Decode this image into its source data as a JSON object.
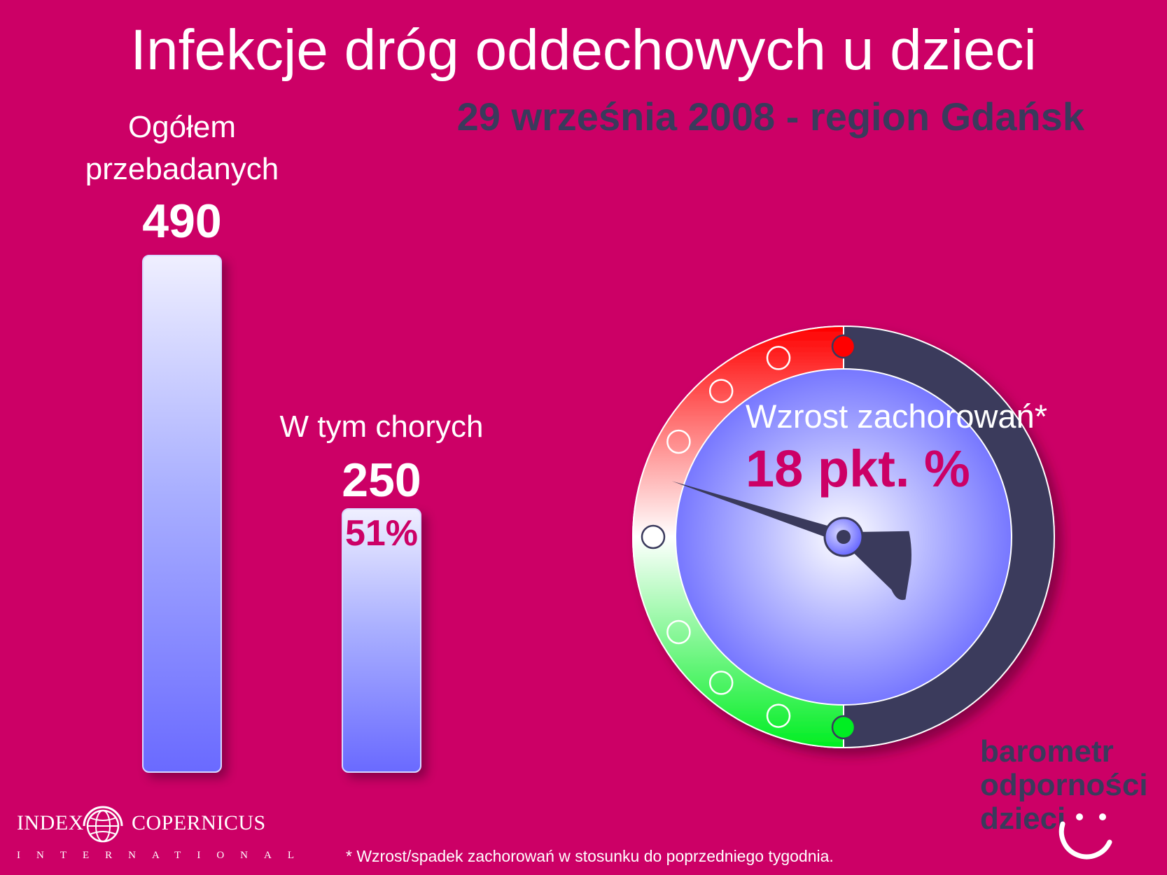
{
  "title": "Infekcje dróg oddechowych u dzieci",
  "subtitle": "29 września 2008 - region Gdańsk",
  "chart_data": [
    {
      "type": "bar",
      "categories": [
        "Ogółem przebadanych",
        "W tym chorych"
      ],
      "label_lines": [
        [
          "Ogółem",
          "przebadanych"
        ],
        [
          "W tym chorych"
        ]
      ],
      "values": [
        490,
        250
      ],
      "value_labels": [
        "490",
        "250"
      ],
      "annotations": [
        "51%"
      ],
      "bar_color_top": "#efefff",
      "bar_color_bottom": "#6a6aff",
      "ylim": [
        0,
        490
      ]
    },
    {
      "type": "gauge",
      "label": "Wzrost zachorowań*",
      "value_label": "18 pkt. %",
      "value": 18,
      "scale_colors": [
        "#00ee22",
        "#ffffff",
        "#ff0000"
      ],
      "inactive_color": "#3a3a5c",
      "dial_color": "#6a6aff"
    }
  ],
  "footnote": "* Wzrost/spadek zachorowań w stosunku do poprzedniego tygodnia.",
  "logo": {
    "left": "INDEX",
    "right": "COPERNICUS",
    "sub": "INTERNATIONAL"
  },
  "brand": {
    "line1": "barometr",
    "line2": "odporności",
    "line3": "dzieci",
    "color": "#3a3a5c"
  },
  "colors": {
    "background": "#cc0066",
    "accent": "#cc0066",
    "dark": "#3a3a5c"
  }
}
